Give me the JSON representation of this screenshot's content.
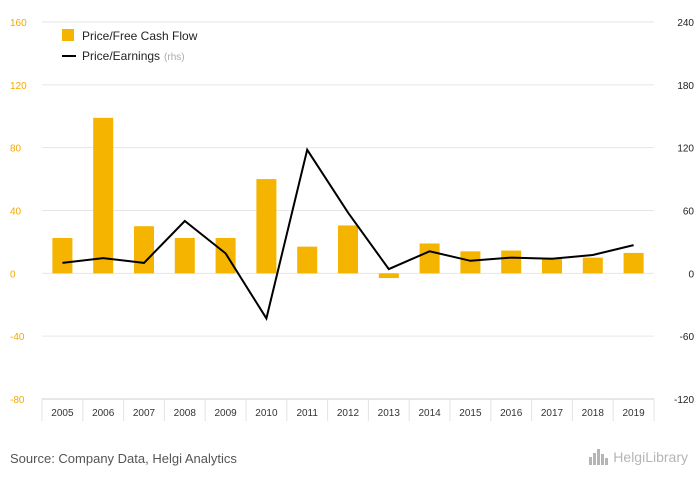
{
  "chart_data": {
    "type": "bar",
    "categories": [
      "2005",
      "2006",
      "2007",
      "2008",
      "2009",
      "2010",
      "2011",
      "2012",
      "2013",
      "2014",
      "2015",
      "2016",
      "2017",
      "2018",
      "2019"
    ],
    "series": [
      {
        "name": "Price/Free Cash Flow",
        "type": "bar",
        "axis": "left",
        "color": "#f5b400",
        "values": [
          22.5,
          99,
          30,
          22.5,
          22.5,
          60,
          17,
          30.5,
          -3,
          19,
          14,
          14.5,
          10,
          10,
          13
        ]
      },
      {
        "name": "Price/Earnings",
        "type": "line",
        "axis": "right",
        "color": "#000000",
        "values": [
          10,
          14.5,
          10,
          50,
          19,
          -43,
          118,
          58,
          4,
          21,
          12,
          15,
          14,
          17.5,
          27
        ]
      }
    ],
    "y_left": {
      "ticks": [
        "160",
        "120",
        "80",
        "40",
        "0",
        "-40",
        "-80"
      ],
      "range": [
        -80,
        160
      ]
    },
    "y_right": {
      "ticks": [
        "240",
        "180",
        "120",
        "60",
        "0",
        "-60",
        "-120"
      ],
      "range": [
        -120,
        240
      ]
    },
    "legend": {
      "position": "top-left",
      "items": [
        {
          "label": "Price/Free Cash Flow",
          "note": ""
        },
        {
          "label": "Price/Earnings",
          "note": "(rhs)"
        }
      ]
    },
    "grid": "horizontal"
  },
  "footer": {
    "source": "Source: Company Data, Helgi Analytics",
    "logo": "HelgiLibrary"
  }
}
